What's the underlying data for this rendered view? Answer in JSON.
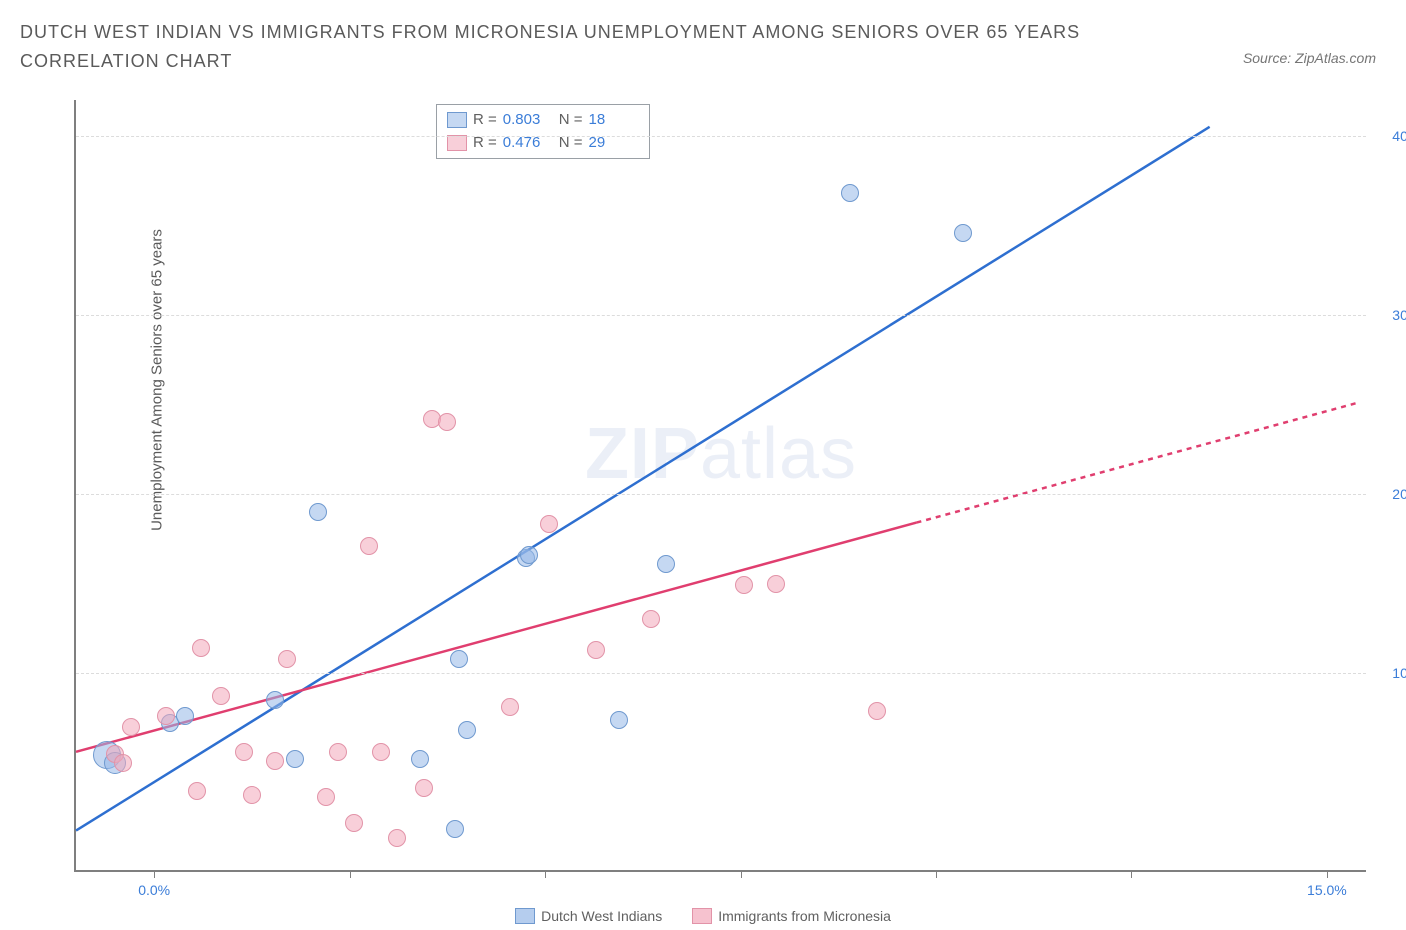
{
  "title": "DUTCH WEST INDIAN VS IMMIGRANTS FROM MICRONESIA UNEMPLOYMENT AMONG SENIORS OVER 65 YEARS CORRELATION CHART",
  "source": "Source: ZipAtlas.com",
  "ylabel": "Unemployment Among Seniors over 65 years",
  "watermark_a": "ZIP",
  "watermark_b": "atlas",
  "chart": {
    "xlim": [
      -1,
      15.5
    ],
    "ylim": [
      -1,
      42
    ],
    "xticks": [
      0,
      2.5,
      5,
      7.5,
      10,
      12.5,
      15
    ],
    "xtick_labels": {
      "0": "0.0%",
      "15": "15.0%"
    },
    "yticks": [
      10,
      20,
      30,
      40
    ],
    "ytick_labels": [
      "10.0%",
      "20.0%",
      "30.0%",
      "40.0%"
    ],
    "grid_color": "#dcdcdc",
    "axis_color": "#7f7f7f",
    "tick_label_color": "#3b7dd8"
  },
  "series": [
    {
      "name": "Dutch West Indians",
      "point_fill": "rgba(149,184,231,0.55)",
      "point_stroke": "#6f99cf",
      "line_color": "#2e6fd0",
      "line_x": [
        -1,
        13.5
      ],
      "line_y": [
        1.2,
        40.5
      ],
      "R": "0.803",
      "N": "18",
      "points": [
        {
          "x": -0.6,
          "y": 5.4,
          "r": 13
        },
        {
          "x": -0.5,
          "y": 5.0,
          "r": 10
        },
        {
          "x": 0.2,
          "y": 7.2,
          "r": 8
        },
        {
          "x": 0.4,
          "y": 7.6,
          "r": 8
        },
        {
          "x": 1.55,
          "y": 8.5,
          "r": 8
        },
        {
          "x": 1.8,
          "y": 5.2,
          "r": 8
        },
        {
          "x": 2.1,
          "y": 19.0,
          "r": 8
        },
        {
          "x": 3.4,
          "y": 5.2,
          "r": 8
        },
        {
          "x": 3.85,
          "y": 1.3,
          "r": 8
        },
        {
          "x": 3.9,
          "y": 10.8,
          "r": 8
        },
        {
          "x": 4.0,
          "y": 6.8,
          "r": 8
        },
        {
          "x": 4.75,
          "y": 16.4,
          "r": 8
        },
        {
          "x": 4.8,
          "y": 16.6,
          "r": 8
        },
        {
          "x": 5.95,
          "y": 7.4,
          "r": 8
        },
        {
          "x": 6.55,
          "y": 16.1,
          "r": 8
        },
        {
          "x": 8.9,
          "y": 36.8,
          "r": 8
        },
        {
          "x": 10.35,
          "y": 34.6,
          "r": 8
        }
      ]
    },
    {
      "name": "Immigrants from Micronesia",
      "point_fill": "rgba(242,168,186,0.55)",
      "point_stroke": "#e293a8",
      "line_color": "#e03e6f",
      "line_x": [
        -1,
        9.75
      ],
      "line_y": [
        5.6,
        18.4
      ],
      "dash_x": [
        9.75,
        15.4
      ],
      "dash_y": [
        18.4,
        25.1
      ],
      "R": "0.476",
      "N": "29",
      "points": [
        {
          "x": -0.5,
          "y": 5.5,
          "r": 8
        },
        {
          "x": -0.3,
          "y": 7.0,
          "r": 8
        },
        {
          "x": -0.4,
          "y": 5.0,
          "r": 8
        },
        {
          "x": 0.15,
          "y": 7.6,
          "r": 8
        },
        {
          "x": 0.55,
          "y": 3.4,
          "r": 8
        },
        {
          "x": 0.6,
          "y": 11.4,
          "r": 8
        },
        {
          "x": 0.85,
          "y": 8.7,
          "r": 8
        },
        {
          "x": 1.15,
          "y": 5.6,
          "r": 8
        },
        {
          "x": 1.25,
          "y": 3.2,
          "r": 8
        },
        {
          "x": 1.55,
          "y": 5.1,
          "r": 8
        },
        {
          "x": 1.7,
          "y": 10.8,
          "r": 8
        },
        {
          "x": 2.2,
          "y": 3.1,
          "r": 8
        },
        {
          "x": 2.35,
          "y": 5.6,
          "r": 8
        },
        {
          "x": 2.55,
          "y": 1.6,
          "r": 8
        },
        {
          "x": 2.75,
          "y": 17.1,
          "r": 8
        },
        {
          "x": 2.9,
          "y": 5.6,
          "r": 8
        },
        {
          "x": 3.1,
          "y": 0.8,
          "r": 8
        },
        {
          "x": 3.45,
          "y": 3.6,
          "r": 8
        },
        {
          "x": 3.55,
          "y": 24.2,
          "r": 8
        },
        {
          "x": 3.75,
          "y": 24.0,
          "r": 8
        },
        {
          "x": 4.55,
          "y": 8.1,
          "r": 8
        },
        {
          "x": 5.05,
          "y": 18.3,
          "r": 8
        },
        {
          "x": 5.65,
          "y": 11.3,
          "r": 8
        },
        {
          "x": 6.35,
          "y": 13.0,
          "r": 8
        },
        {
          "x": 7.55,
          "y": 14.9,
          "r": 8
        },
        {
          "x": 7.95,
          "y": 15.0,
          "r": 8
        },
        {
          "x": 9.25,
          "y": 7.9,
          "r": 8
        }
      ]
    }
  ],
  "legend": {
    "items": [
      {
        "label": "Dutch West Indians",
        "fill": "rgba(149,184,231,0.7)",
        "stroke": "#6f99cf"
      },
      {
        "label": "Immigrants from Micronesia",
        "fill": "rgba(242,168,186,0.7)",
        "stroke": "#e293a8"
      }
    ]
  }
}
